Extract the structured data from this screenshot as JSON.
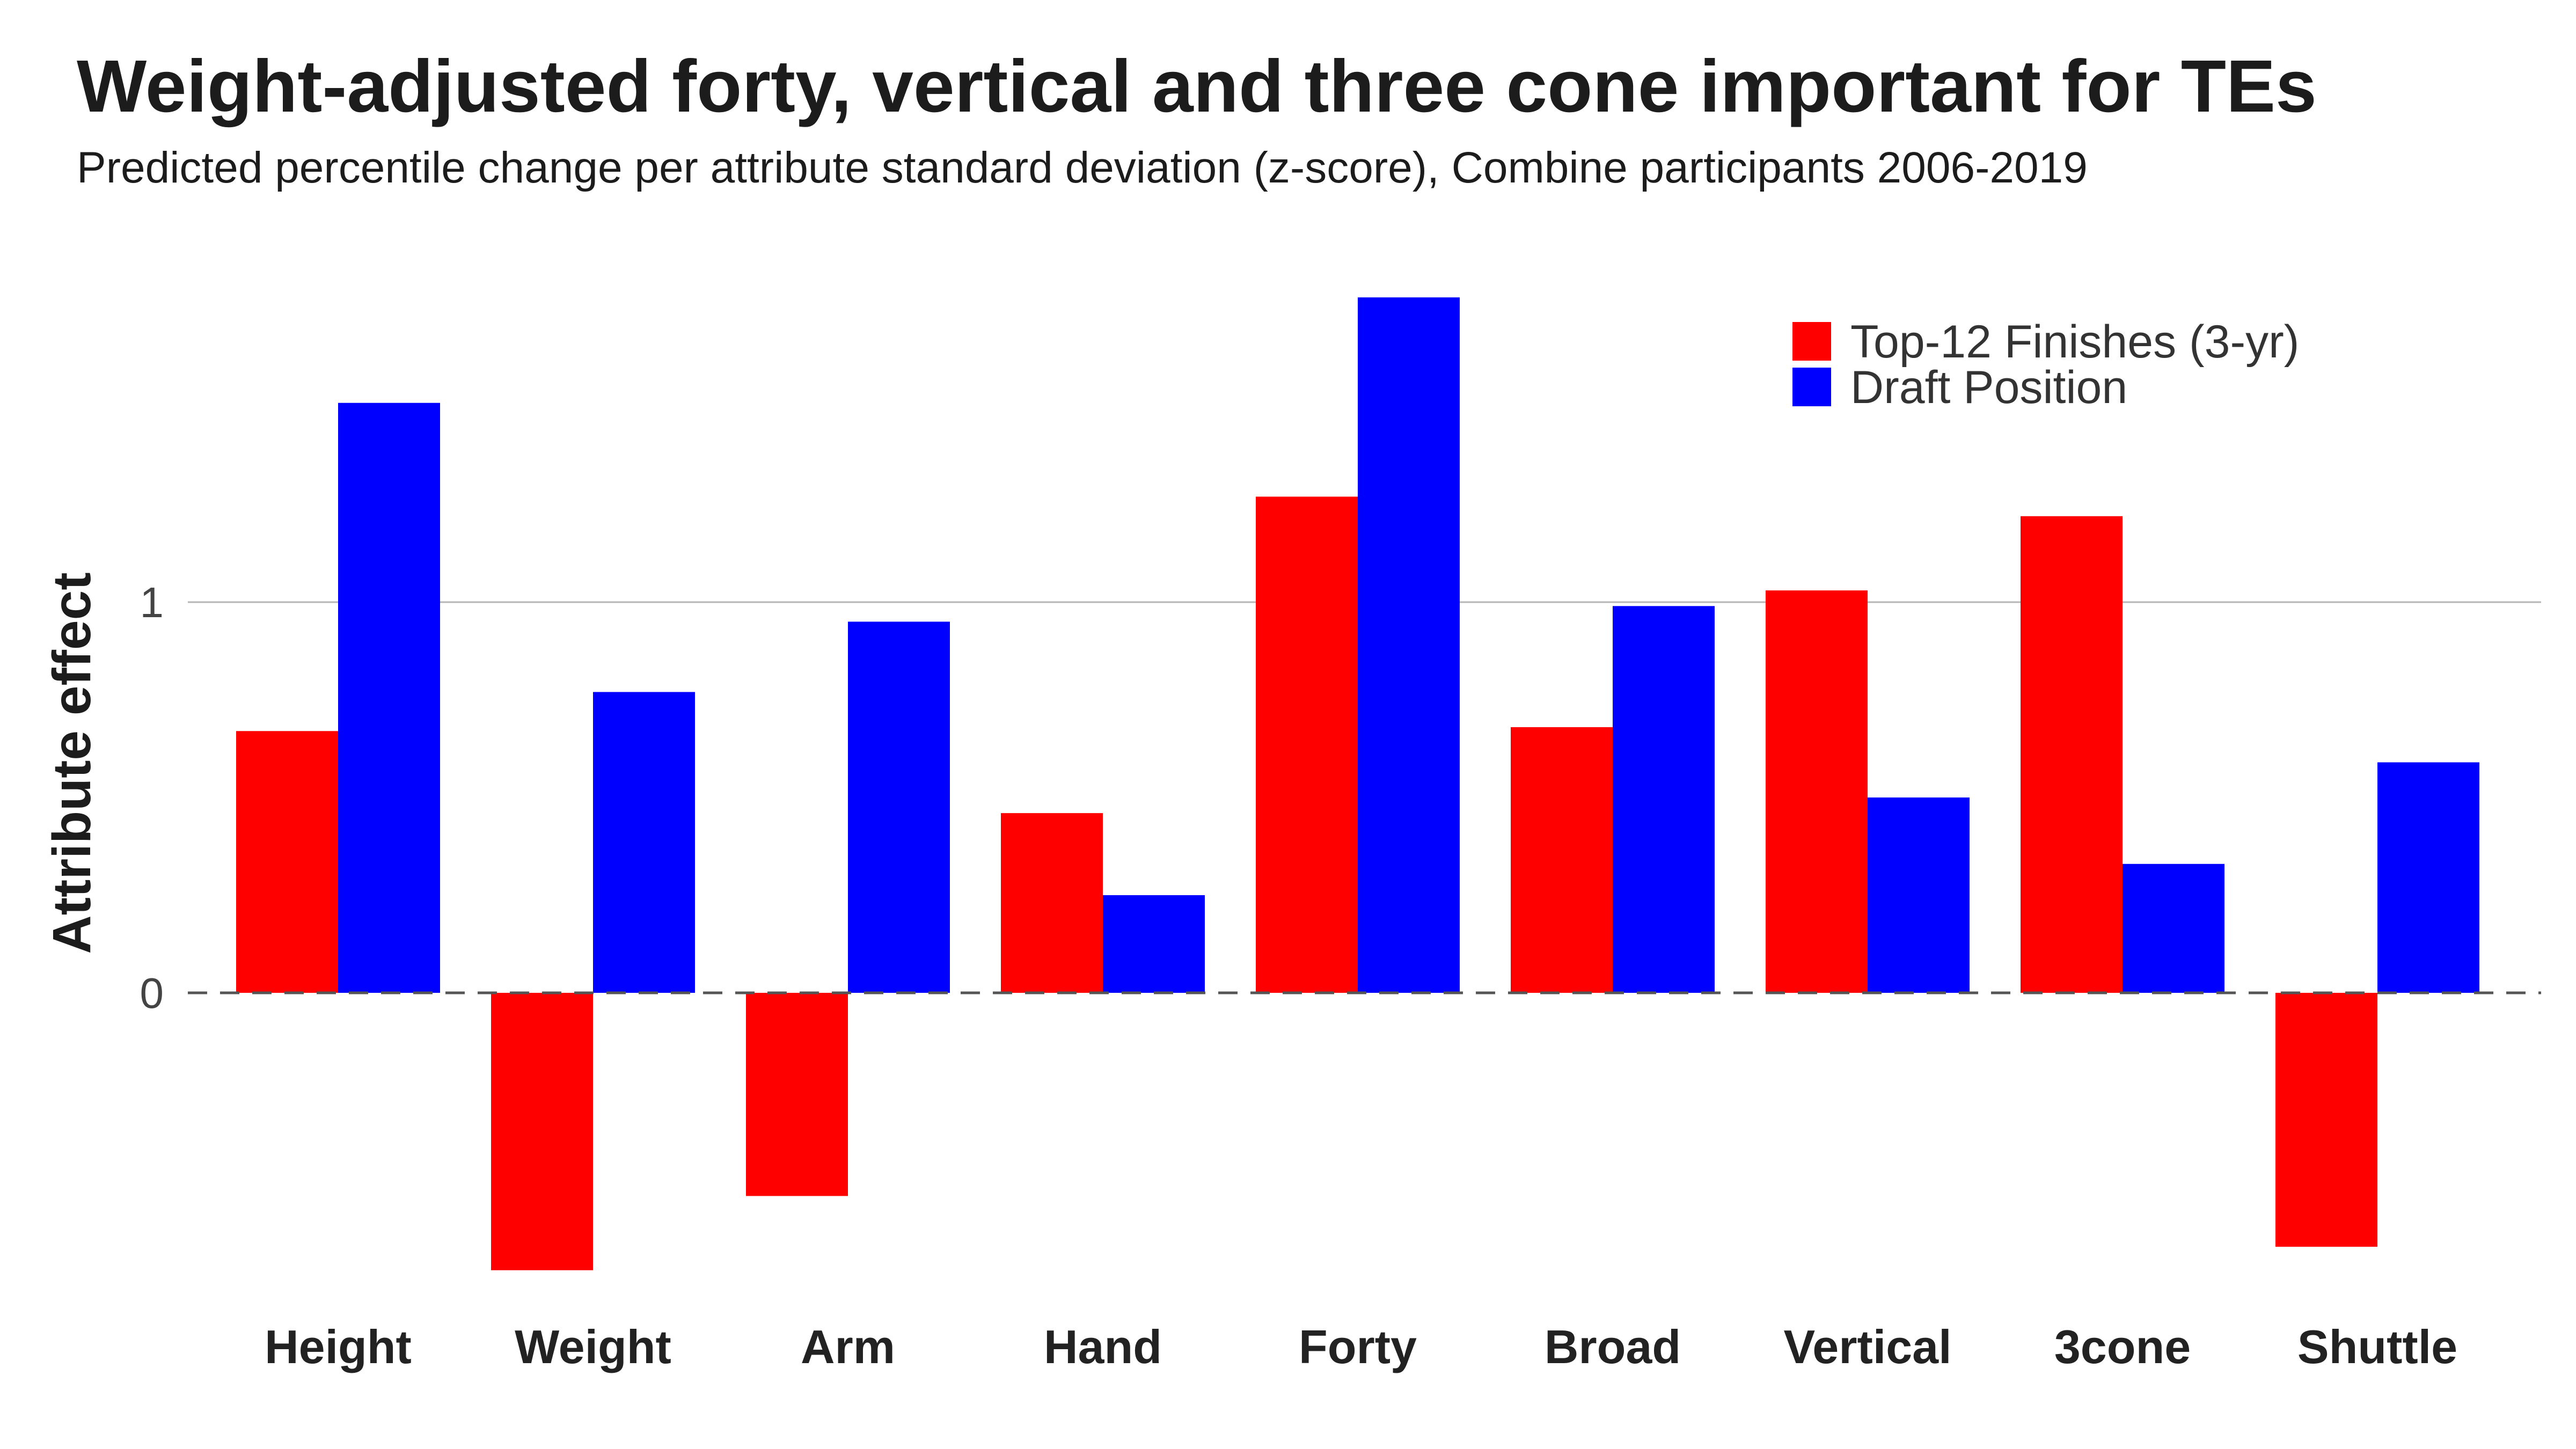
{
  "chart_data": {
    "type": "bar",
    "title": "Weight-adjusted forty, vertical and three cone important for TEs",
    "subtitle": "Predicted percentile change per attribute standard deviation (z-score), Combine participants 2006-2019",
    "xlabel": "",
    "ylabel": "Attribute effect",
    "categories": [
      "Height",
      "Weight",
      "Arm",
      "Hand",
      "Forty",
      "Broad",
      "Vertical",
      "3cone",
      "Shuttle"
    ],
    "series": [
      {
        "name": "Top-12 Finishes (3-yr)",
        "color": "#ff0000",
        "values": [
          0.67,
          -0.71,
          -0.52,
          0.46,
          1.27,
          0.68,
          1.03,
          1.22,
          -0.65
        ]
      },
      {
        "name": "Draft Position",
        "color": "#0000ff",
        "values": [
          1.51,
          0.77,
          0.95,
          0.25,
          1.78,
          0.99,
          0.5,
          0.33,
          0.59
        ]
      }
    ],
    "ylim": [
      -0.85,
      1.85
    ],
    "yticks": [
      "0",
      "1"
    ],
    "ytick_values": [
      0,
      1
    ],
    "grid": "horizontal",
    "zero_line": "dashed",
    "legend_position": "top-right"
  }
}
